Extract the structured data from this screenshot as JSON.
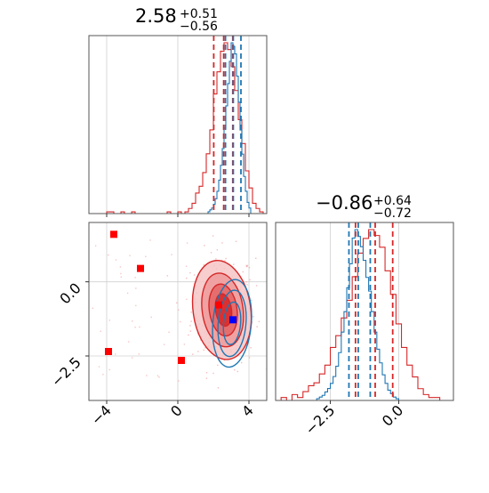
{
  "chart_data": {
    "type": "corner",
    "parameters": [
      {
        "median": 2.58,
        "plus": 0.51,
        "minus": 0.56
      },
      {
        "median": -0.86,
        "plus": 0.64,
        "minus": 0.72
      }
    ],
    "titles": [
      {
        "value": "2.58",
        "plus": "+0.51",
        "minus": "−0.56"
      },
      {
        "value": "−0.86",
        "plus": "+0.64",
        "minus": "−0.72"
      }
    ],
    "x_axis_param1": {
      "range": [
        -5,
        5
      ],
      "ticks": [
        -4,
        0,
        4
      ],
      "tick_labels": [
        "−4",
        "0",
        "4"
      ]
    },
    "y_axis_param2": {
      "range": [
        -4,
        2
      ],
      "ticks": [
        0.0,
        -2.5
      ],
      "tick_labels": [
        "0.0",
        "−2.5"
      ]
    },
    "x_axis_param2": {
      "range": [
        -4.5,
        2
      ],
      "ticks": [
        -2.5,
        0.0
      ],
      "tick_labels": [
        "−2.5",
        "0.0"
      ]
    },
    "series_colors": {
      "red": "#d62728",
      "blue": "#1f77b4",
      "red_fill": "#e35f5f",
      "red_scatter": "#f4a0a0"
    },
    "hist1_red": {
      "bin_edges": [
        -5.0,
        -4.8,
        -4.6,
        -4.4,
        -4.2,
        -4.0,
        -3.8,
        -3.6,
        -3.4,
        -3.2,
        -3.0,
        -2.8,
        -2.6,
        -2.4,
        -2.2,
        -2.0,
        -1.8,
        -1.6,
        -1.4,
        -1.2,
        -1.0,
        -0.8,
        -0.6,
        -0.4,
        -0.2,
        0.0,
        0.2,
        0.4,
        0.6,
        0.8,
        1.0,
        1.2,
        1.4,
        1.6,
        1.8,
        2.0,
        2.2,
        2.4,
        2.6,
        2.8,
        3.0,
        3.2,
        3.4,
        3.6,
        3.8,
        4.0,
        4.2,
        4.4,
        4.6,
        4.8,
        5.0
      ],
      "counts": [
        0,
        0,
        0,
        0,
        0,
        1,
        1,
        0,
        0,
        1,
        0,
        0,
        1,
        0,
        0,
        0,
        0,
        0,
        0,
        0,
        0,
        0,
        1,
        0,
        0,
        1,
        0,
        1,
        3,
        6,
        12,
        16,
        24,
        35,
        49,
        70,
        83,
        95,
        100,
        96,
        86,
        72,
        55,
        41,
        25,
        15,
        6,
        3,
        1,
        0
      ]
    },
    "hist1_blue": {
      "bin_edges": [
        1.6,
        1.7,
        1.8,
        1.9,
        2.0,
        2.1,
        2.2,
        2.3,
        2.4,
        2.5,
        2.6,
        2.7,
        2.8,
        2.9,
        3.0,
        3.1,
        3.2,
        3.3,
        3.4,
        3.5,
        3.6,
        3.7,
        3.8,
        3.9,
        4.0,
        4.1,
        4.2
      ],
      "counts": [
        0,
        1,
        2,
        3,
        5,
        8,
        12,
        18,
        26,
        35,
        46,
        58,
        70,
        82,
        92,
        90,
        86,
        74,
        60,
        45,
        32,
        20,
        12,
        6,
        3,
        0
      ]
    },
    "hist1_red_quantiles": [
      2.02,
      2.58,
      3.09
    ],
    "hist1_blue_quantiles": [
      2.68,
      3.12,
      3.55
    ],
    "hist2_red": {
      "bin_edges": [
        -4.5,
        -4.3,
        -4.1,
        -3.9,
        -3.7,
        -3.5,
        -3.3,
        -3.1,
        -2.9,
        -2.7,
        -2.5,
        -2.3,
        -2.1,
        -1.9,
        -1.7,
        -1.5,
        -1.3,
        -1.1,
        -0.9,
        -0.7,
        -0.5,
        -0.3,
        -0.1,
        0.1,
        0.3,
        0.5,
        0.7,
        0.9,
        1.1,
        1.3,
        1.5,
        1.7,
        1.9
      ],
      "counts": [
        0,
        1,
        0,
        2,
        1,
        3,
        5,
        6,
        9,
        12,
        18,
        22,
        28,
        34,
        42,
        50,
        55,
        58,
        56,
        52,
        44,
        36,
        26,
        18,
        12,
        8,
        4,
        2,
        1,
        1,
        0,
        0
      ]
    },
    "hist2_blue": {
      "bin_edges": [
        -3.0,
        -2.9,
        -2.8,
        -2.7,
        -2.6,
        -2.5,
        -2.4,
        -2.3,
        -2.2,
        -2.1,
        -2.0,
        -1.9,
        -1.8,
        -1.7,
        -1.6,
        -1.5,
        -1.4,
        -1.3,
        -1.2,
        -1.1,
        -1.0,
        -0.9,
        -0.8,
        -0.7,
        -0.6,
        -0.5,
        -0.4,
        -0.3,
        -0.2,
        -0.1,
        0.0
      ],
      "counts": [
        1,
        2,
        3,
        5,
        7,
        10,
        14,
        20,
        28,
        40,
        52,
        66,
        80,
        95,
        100,
        96,
        90,
        82,
        72,
        64,
        52,
        40,
        30,
        22,
        15,
        10,
        6,
        4,
        2,
        1
      ]
    },
    "hist2_red_quantiles": [
      -1.58,
      -0.86,
      -0.22
    ],
    "hist2_blue_quantiles": [
      -1.82,
      -1.48,
      -1.04
    ],
    "scatter_2d": {
      "red_markers": [
        {
          "x": -3.6,
          "y": 1.6
        },
        {
          "x": -2.1,
          "y": 0.45
        },
        {
          "x": -3.9,
          "y": -2.35
        },
        {
          "x": 0.2,
          "y": -2.65
        },
        {
          "x": 2.3,
          "y": -0.78
        }
      ],
      "blue_markers": [
        {
          "x": 3.1,
          "y": -1.28
        }
      ],
      "red_contours": [
        {
          "cx": 2.48,
          "cy": -0.95,
          "rx": 1.62,
          "ry": 1.68,
          "rot": -8
        },
        {
          "cx": 2.52,
          "cy": -0.95,
          "rx": 1.15,
          "ry": 1.25,
          "rot": -8
        },
        {
          "cx": 2.55,
          "cy": -0.95,
          "rx": 0.78,
          "ry": 0.88,
          "rot": -8
        },
        {
          "cx": 2.57,
          "cy": -0.95,
          "rx": 0.45,
          "ry": 0.55,
          "rot": -8
        }
      ],
      "blue_contours": [
        {
          "cx": 3.05,
          "cy": -1.4,
          "rx": 1.08,
          "ry": 1.48,
          "rot": 5
        },
        {
          "cx": 3.05,
          "cy": -1.4,
          "rx": 0.78,
          "ry": 1.12,
          "rot": 5
        },
        {
          "cx": 3.05,
          "cy": -1.4,
          "rx": 0.48,
          "ry": 0.72,
          "rot": 5
        }
      ]
    }
  }
}
